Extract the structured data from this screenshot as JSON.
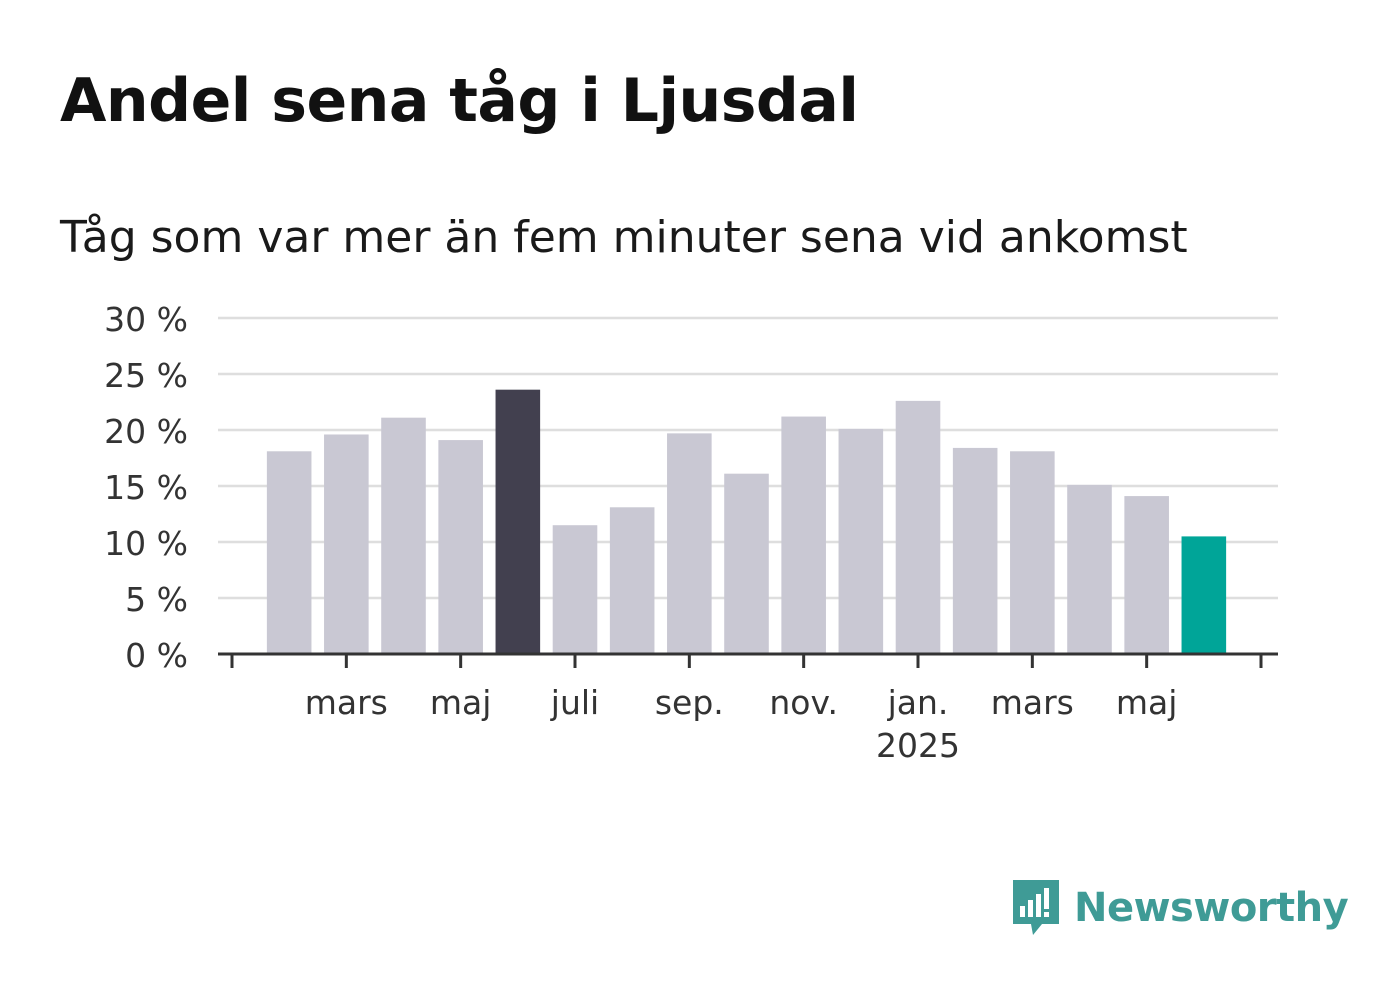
{
  "title": "Andel sena tåg i Ljusdal",
  "subtitle": "Tåg som var mer än fem minuter sena vid ankomst",
  "brand": {
    "name": "Newsworthy",
    "icon": "newsworthy-chart-bubble-icon",
    "color": "#3f9b96"
  },
  "chart_data": {
    "type": "bar",
    "title": "Andel sena tåg i Ljusdal",
    "subtitle": "Tåg som var mer än fem minuter sena vid ankomst",
    "ylim": [
      0,
      30
    ],
    "y_ticks": [
      0,
      5,
      10,
      15,
      20,
      25,
      30
    ],
    "y_tick_labels": [
      "0 %",
      "5 %",
      "10 %",
      "15 %",
      "20 %",
      "25 %",
      "30 %"
    ],
    "grid": true,
    "categories": [
      "2024-02",
      "2024-03",
      "2024-04",
      "2024-05",
      "2024-06",
      "2024-07",
      "2024-08",
      "2024-09",
      "2024-10",
      "2024-11",
      "2024-12",
      "2025-01",
      "2025-02",
      "2025-03",
      "2025-04",
      "2025-05",
      "2025-06"
    ],
    "values": [
      18.1,
      19.6,
      21.1,
      19.1,
      23.6,
      11.5,
      13.1,
      19.7,
      16.1,
      21.2,
      20.1,
      22.6,
      18.4,
      18.1,
      15.1,
      14.1,
      10.5
    ],
    "bar_colors": {
      "default": "#c9c8d3",
      "highlight_max": "#42404f",
      "latest": "#00a598"
    },
    "highlight_index": 4,
    "latest_index": 16,
    "x_labels": [
      {
        "label": "mars",
        "month": "2024-03"
      },
      {
        "label": "maj",
        "month": "2024-05"
      },
      {
        "label": "juli",
        "month": "2024-07"
      },
      {
        "label": "sep.",
        "month": "2024-09"
      },
      {
        "label": "nov.",
        "month": "2024-11"
      },
      {
        "label": "jan.",
        "month": "2025-01",
        "sublabel": "2025"
      },
      {
        "label": "mars",
        "month": "2025-03"
      },
      {
        "label": "maj",
        "month": "2025-05"
      }
    ]
  }
}
